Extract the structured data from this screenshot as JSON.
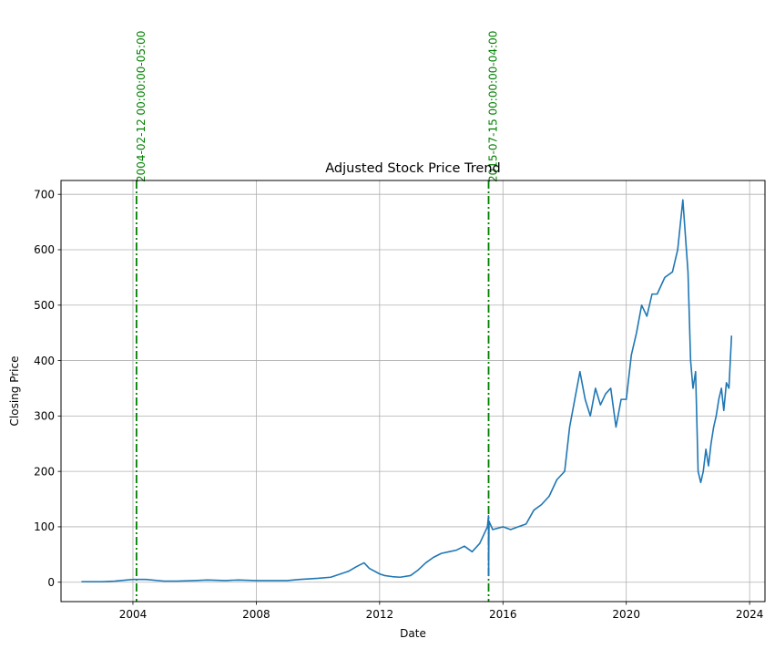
{
  "chart_data": {
    "type": "line",
    "title": "Adjusted Stock Price Trend",
    "xlabel": "Date",
    "ylabel": "Closing Price",
    "xlim": [
      "2001-09-01",
      "2024-07-01"
    ],
    "ylim": [
      -35,
      725
    ],
    "grid": true,
    "x_ticks": [
      "2004",
      "2008",
      "2012",
      "2016",
      "2020",
      "2024"
    ],
    "y_ticks": [
      "0",
      "100",
      "200",
      "300",
      "400",
      "500",
      "600",
      "700"
    ],
    "series": [
      {
        "color": "#1f77b4",
        "x": [
          "2002-05-01",
          "2002-09-01",
          "2003-01-01",
          "2003-06-01",
          "2004-01-01",
          "2004-06-01",
          "2005-01-01",
          "2005-06-01",
          "2006-01-01",
          "2006-06-01",
          "2007-01-01",
          "2007-06-01",
          "2008-01-01",
          "2008-06-01",
          "2009-01-01",
          "2009-06-01",
          "2010-01-01",
          "2010-06-01",
          "2011-01-01",
          "2011-04-01",
          "2011-07-01",
          "2011-09-01",
          "2012-01-01",
          "2012-03-01",
          "2012-06-01",
          "2012-09-01",
          "2013-01-01",
          "2013-04-01",
          "2013-07-01",
          "2013-10-01",
          "2014-01-01",
          "2014-04-01",
          "2014-07-01",
          "2014-10-01",
          "2015-01-01",
          "2015-04-01",
          "2015-07-01",
          "2015-07-14",
          "2015-07-15",
          "2015-07-20",
          "2015-09-01",
          "2016-01-01",
          "2016-04-01",
          "2016-07-01",
          "2016-10-01",
          "2017-01-01",
          "2017-04-01",
          "2017-07-01",
          "2017-10-01",
          "2018-01-01",
          "2018-03-01",
          "2018-05-01",
          "2018-07-01",
          "2018-09-01",
          "2018-11-01",
          "2019-01-01",
          "2019-03-01",
          "2019-05-01",
          "2019-07-01",
          "2019-09-01",
          "2019-11-01",
          "2020-01-01",
          "2020-03-01",
          "2020-05-01",
          "2020-07-01",
          "2020-09-01",
          "2020-11-01",
          "2021-01-01",
          "2021-04-01",
          "2021-07-01",
          "2021-09-01",
          "2021-11-01",
          "2022-01-01",
          "2022-02-01",
          "2022-03-01",
          "2022-04-01",
          "2022-05-01",
          "2022-06-01",
          "2022-07-01",
          "2022-08-01",
          "2022-09-01",
          "2022-10-01",
          "2022-11-01",
          "2022-12-01",
          "2023-01-01",
          "2023-02-01",
          "2023-03-01",
          "2023-04-01",
          "2023-05-01",
          "2023-06-01"
        ],
        "y": [
          1,
          1,
          1,
          2,
          5,
          5,
          2,
          2,
          3,
          4,
          3,
          4,
          3,
          3,
          3,
          5,
          7,
          9,
          20,
          28,
          35,
          25,
          15,
          12,
          10,
          9,
          12,
          22,
          35,
          45,
          52,
          55,
          58,
          65,
          55,
          70,
          100,
          120,
          12,
          110,
          95,
          100,
          95,
          100,
          105,
          130,
          140,
          155,
          185,
          200,
          280,
          330,
          380,
          330,
          300,
          350,
          320,
          340,
          350,
          280,
          330,
          330,
          410,
          450,
          500,
          480,
          520,
          520,
          550,
          560,
          600,
          690,
          560,
          400,
          350,
          380,
          200,
          180,
          200,
          240,
          210,
          250,
          280,
          300,
          330,
          350,
          310,
          360,
          350,
          445
        ]
      }
    ],
    "vlines": [
      {
        "date": "2004-02-12",
        "label": "2004-02-12 00:00:00-05:00",
        "color": "#008000"
      },
      {
        "date": "2015-07-15",
        "label": "2015-07-15 00:00:00-04:00",
        "color": "#008000"
      }
    ]
  }
}
